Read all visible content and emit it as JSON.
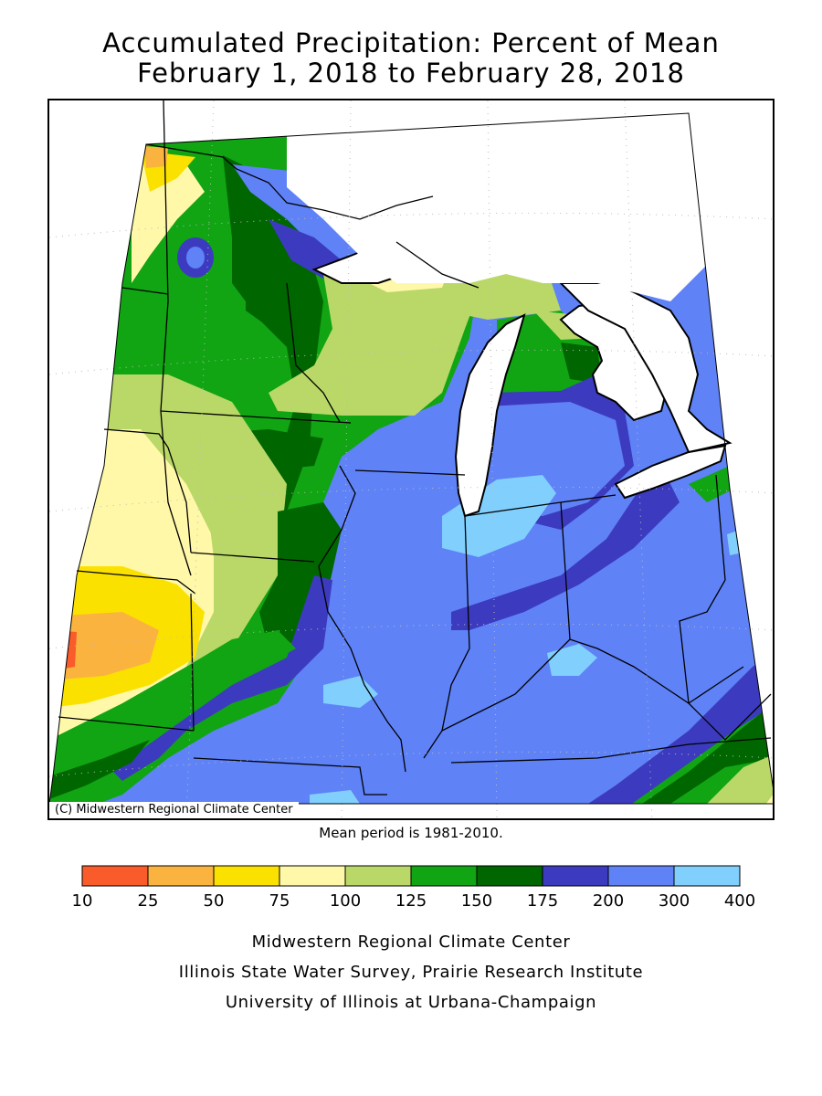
{
  "title_line1": "Accumulated Precipitation: Percent of Mean",
  "title_line2": "February 1, 2018 to February 28, 2018",
  "copyright": "(C) Midwestern Regional Climate Center",
  "mean_period": "Mean period is 1981-2010.",
  "legend": {
    "breaks": [
      "10",
      "25",
      "50",
      "75",
      "100",
      "125",
      "150",
      "175",
      "200",
      "300",
      "400"
    ],
    "colors": [
      "#f95b2a",
      "#fbb33f",
      "#fbe100",
      "#fff8a9",
      "#bad868",
      "#11a413",
      "#006600",
      "#3c3bbf",
      "#5f82f7",
      "#80cffd"
    ]
  },
  "credits": [
    "Midwestern Regional Climate Center",
    "Illinois State Water Survey, Prairie Research Institute",
    "University of Illinois at Urbana-Champaign"
  ],
  "colors": {
    "lake": "#ffffff",
    "border": "#000000",
    "grid": "#bbbbbb"
  }
}
